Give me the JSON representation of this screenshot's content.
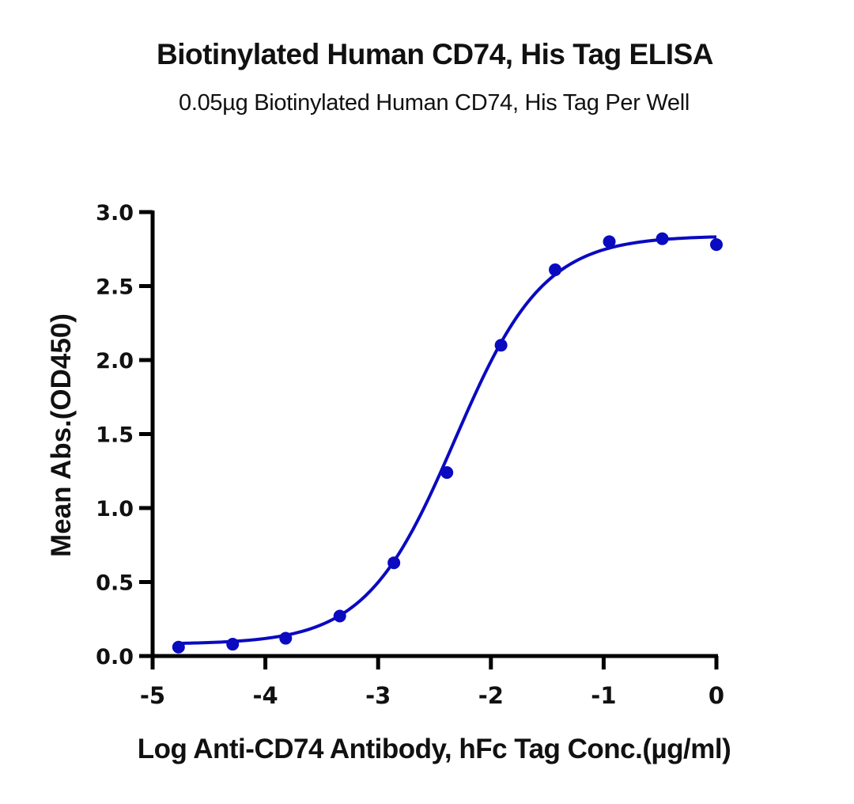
{
  "chart": {
    "title": "Biotinylated Human CD74, His Tag ELISA",
    "subtitle": "0.05µg Biotinylated  Human CD74, His Tag Per Well",
    "xlabel": "Log Anti-CD74 Antibody, hFc Tag Conc.(µg/ml)",
    "ylabel": "Mean Abs.(OD450)"
  },
  "colors": {
    "series": "#0A0AC0",
    "axis": "#000000"
  },
  "chart_data": {
    "type": "scatter",
    "title": "Biotinylated Human CD74, His Tag ELISA",
    "subtitle": "0.05µg Biotinylated  Human CD74, His Tag Per Well",
    "xlabel": "Log Anti-CD74 Antibody, hFc Tag Conc.(µg/ml)",
    "ylabel": "Mean Abs.(OD450)",
    "xlim": [
      -5,
      0
    ],
    "ylim": [
      0,
      3.0
    ],
    "xticks": [
      -5,
      -4,
      -3,
      -2,
      -1,
      0
    ],
    "xtick_labels": [
      "-5",
      "-4",
      "-3",
      "-2",
      "-1",
      "0"
    ],
    "yticks": [
      0.0,
      0.5,
      1.0,
      1.5,
      2.0,
      2.5,
      3.0
    ],
    "ytick_labels": [
      "0.0",
      "0.5",
      "1.0",
      "1.5",
      "2.0",
      "2.5",
      "3.0"
    ],
    "grid": false,
    "legend": null,
    "series": [
      {
        "name": "Anti-CD74 Antibody, hFc Tag",
        "x": [
          -4.77,
          -4.29,
          -3.82,
          -3.34,
          -2.86,
          -2.39,
          -1.91,
          -1.43,
          -0.95,
          -0.48,
          0.0
        ],
        "y": [
          0.06,
          0.08,
          0.12,
          0.27,
          0.63,
          1.24,
          2.1,
          2.61,
          2.8,
          2.82,
          2.78
        ],
        "fit": {
          "model": "4PL",
          "bottom": 0.08,
          "top": 2.84,
          "logEC50": -2.32,
          "hill": 1.1
        }
      }
    ]
  }
}
